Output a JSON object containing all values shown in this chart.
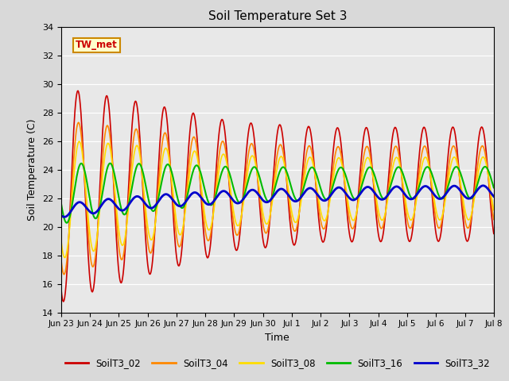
{
  "title": "Soil Temperature Set 3",
  "xlabel": "Time",
  "ylabel": "Soil Temperature (C)",
  "ylim": [
    14,
    34
  ],
  "yticks": [
    14,
    16,
    18,
    20,
    22,
    24,
    26,
    28,
    30,
    32,
    34
  ],
  "bg_color": "#d9d9d9",
  "plot_bg_color": "#e8e8e8",
  "grid_color": "#ffffff",
  "annotation_text": "TW_met",
  "annotation_color": "#cc0000",
  "annotation_bg": "#ffffcc",
  "annotation_border": "#cc8800",
  "series": {
    "SoilT3_02": {
      "color": "#cc0000",
      "lw": 1.2
    },
    "SoilT3_04": {
      "color": "#ff8800",
      "lw": 1.2
    },
    "SoilT3_08": {
      "color": "#ffdd00",
      "lw": 1.2
    },
    "SoilT3_16": {
      "color": "#00bb00",
      "lw": 1.5
    },
    "SoilT3_32": {
      "color": "#0000cc",
      "lw": 2.0
    }
  },
  "xtick_labels": [
    "Jun 23",
    "Jun 24",
    "Jun 25",
    "Jun 26",
    "Jun 27",
    "Jun 28",
    "Jun 29",
    "Jun 30",
    "Jul 1",
    "Jul 2",
    "Jul 3",
    "Jul 4",
    "Jul 5",
    "Jul 6",
    "Jul 7",
    "Jul 8"
  ],
  "xtick_positions": [
    0,
    1,
    2,
    3,
    4,
    5,
    6,
    7,
    8,
    9,
    10,
    11,
    12,
    13,
    14,
    15
  ]
}
